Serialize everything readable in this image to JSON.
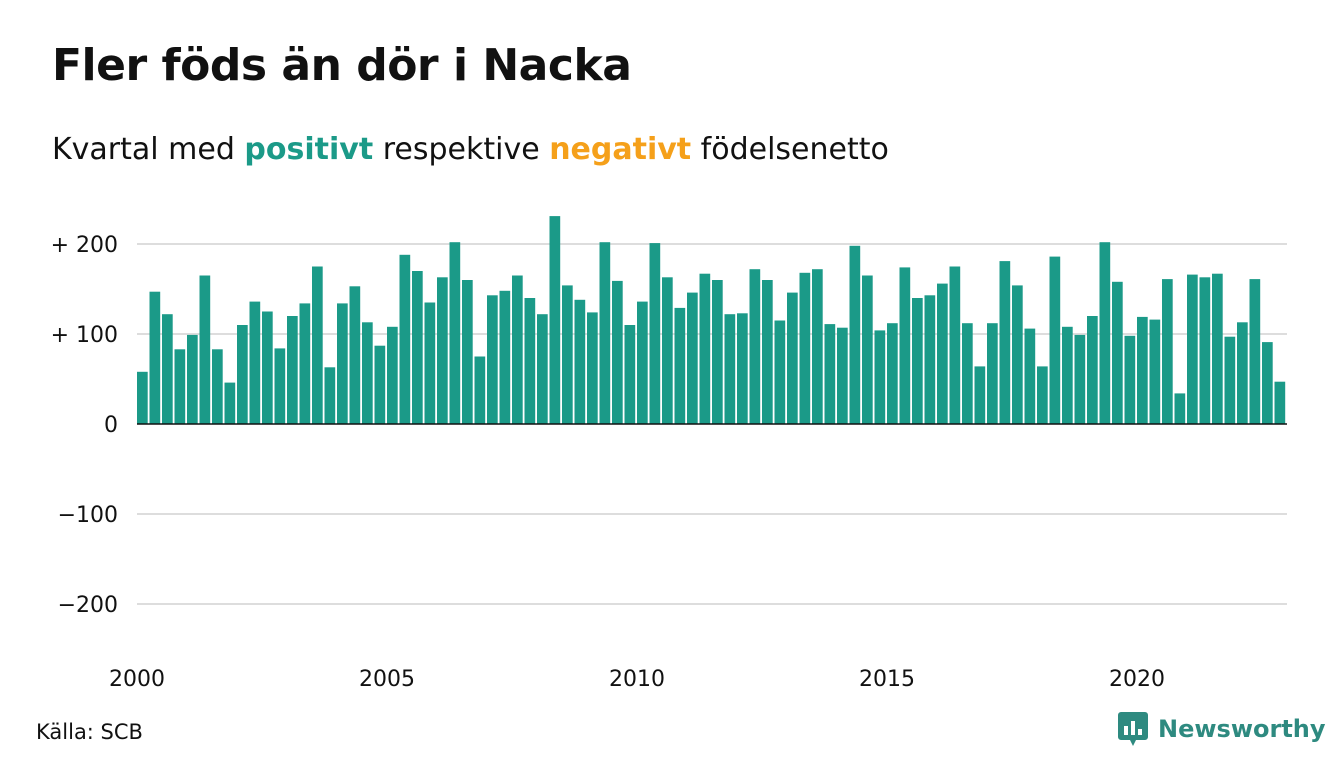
{
  "title": "Fler föds än dör i Nacka",
  "subtitle": {
    "prefix": "Kvartal med ",
    "positive_word": "positivt",
    "middle": " respektive ",
    "negative_word": "negativt",
    "suffix": " födelsenetto"
  },
  "colors": {
    "positive": "#1b9a88",
    "negative": "#f5a01a",
    "brand": "#2e8a80",
    "grid": "#dddddd",
    "text": "#111111"
  },
  "source": "Källa: SCB",
  "brand": {
    "name": "Newsworthy",
    "icon": "newsworthy-logo-icon"
  },
  "chart_data": {
    "type": "bar",
    "title": "Fler föds än dör i Nacka",
    "xlabel": "",
    "ylabel": "",
    "ylim": [
      -250,
      250
    ],
    "yticks": [
      {
        "value": 200,
        "label": "+ 200"
      },
      {
        "value": 100,
        "label": "+ 100"
      },
      {
        "value": 0,
        "label": "0"
      },
      {
        "value": -100,
        "label": "−100"
      },
      {
        "value": -200,
        "label": "−200"
      }
    ],
    "xticks": [
      "2000",
      "2005",
      "2010",
      "2015",
      "2020"
    ],
    "grid": true,
    "start": {
      "year": 2000,
      "quarter": 1
    },
    "values": [
      58,
      147,
      122,
      83,
      99,
      165,
      83,
      46,
      110,
      136,
      125,
      84,
      120,
      134,
      175,
      63,
      134,
      153,
      113,
      87,
      108,
      188,
      170,
      135,
      163,
      202,
      160,
      75,
      143,
      148,
      165,
      140,
      122,
      231,
      154,
      138,
      124,
      202,
      159,
      110,
      136,
      201,
      163,
      129,
      146,
      167,
      160,
      122,
      123,
      172,
      160,
      115,
      146,
      168,
      172,
      111,
      107,
      198,
      165,
      104,
      112,
      174,
      140,
      143,
      156,
      175,
      112,
      64,
      112,
      181,
      154,
      106,
      64,
      186,
      108,
      99,
      120,
      202,
      158,
      98,
      119,
      116,
      161,
      34,
      166,
      163,
      167,
      97,
      113,
      161,
      91,
      47
    ]
  }
}
